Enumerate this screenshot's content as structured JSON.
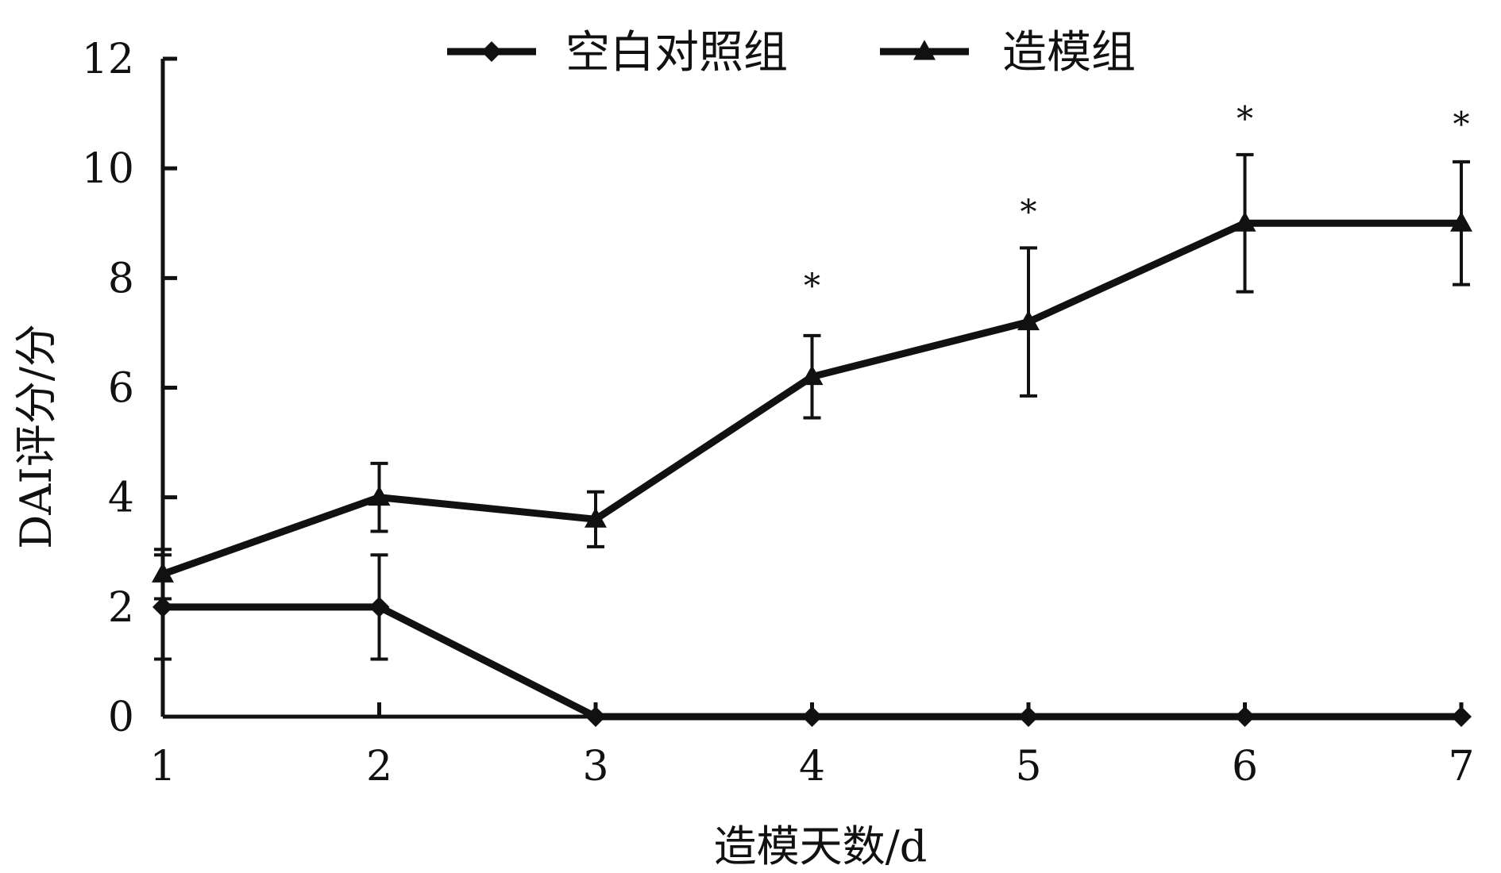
{
  "chart_data": {
    "type": "line",
    "title": "",
    "xlabel": "造模天数/d",
    "ylabel": "DAI评分/分",
    "x": [
      1,
      2,
      3,
      4,
      5,
      6,
      7
    ],
    "xlim": [
      1,
      7
    ],
    "ylim": [
      0,
      12
    ],
    "y_ticks": [
      0,
      2,
      4,
      6,
      8,
      10,
      12
    ],
    "x_ticks": [
      1,
      2,
      3,
      4,
      5,
      6,
      7
    ],
    "grid": false,
    "legend_position": "top-center",
    "series": [
      {
        "name": "空白对照组",
        "marker": "diamond",
        "color": "#111111",
        "values": [
          2.0,
          2.0,
          0.0,
          0.0,
          0.0,
          0.0,
          0.0
        ],
        "error": [
          0.95,
          0.95,
          0,
          0,
          0,
          0,
          0
        ]
      },
      {
        "name": "造模组",
        "marker": "triangle",
        "color": "#111111",
        "values": [
          2.6,
          4.0,
          3.6,
          6.2,
          7.2,
          9.0,
          9.0
        ],
        "error": [
          0.45,
          0.62,
          0.5,
          0.75,
          1.35,
          1.25,
          1.12
        ]
      }
    ],
    "annotations": [
      {
        "x": 4,
        "y": 7.85,
        "text": "*"
      },
      {
        "x": 5,
        "y": 9.2,
        "text": "*"
      },
      {
        "x": 6,
        "y": 10.9,
        "text": "*"
      },
      {
        "x": 7,
        "y": 10.8,
        "text": "*"
      }
    ]
  }
}
